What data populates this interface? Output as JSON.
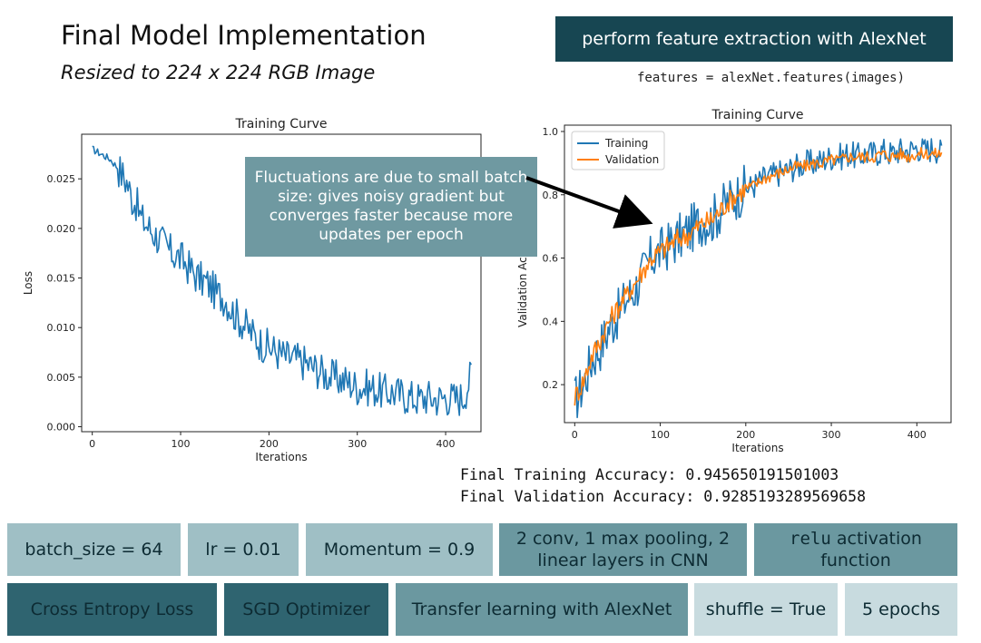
{
  "header": {
    "title": "Final Model Implementation",
    "subtitle": "Resized to 224 x 224 RGB Image",
    "feature_box": "perform feature extraction with AlexNet",
    "feature_code": "features = alexNet.features(images)"
  },
  "callout": "Fluctuations are due to small batch size: gives noisy gradient but converges faster because more updates per epoch",
  "accuracy": {
    "training": "Final Training Accuracy: 0.945650191501003",
    "validation": "Final Validation Accuracy: 0.9285193289569658"
  },
  "chips_row1": [
    {
      "label": "batch_size = 64"
    },
    {
      "label": "lr = 0.01"
    },
    {
      "label": "Momentum = 0.9"
    },
    {
      "label": "2 conv, 1 max pooling, 2 linear layers in CNN"
    },
    {
      "code": "relu",
      "label": " activation function"
    }
  ],
  "chips_row2": [
    {
      "label": "Cross Entropy Loss"
    },
    {
      "label": "SGD Optimizer"
    },
    {
      "label": "Transfer learning with AlexNet"
    },
    {
      "label": "shuffle = True"
    },
    {
      "label": "5 epochs"
    }
  ],
  "colors": {
    "training": "#1f77b4",
    "validation": "#ff7f0e",
    "dark_box": "#174652",
    "callout": "#6f99a1"
  },
  "chart_data": [
    {
      "type": "line",
      "title": "Training Curve",
      "xlabel": "Iterations",
      "ylabel": "Loss",
      "xlim": [
        -12,
        440
      ],
      "ylim": [
        -0.0005,
        0.0295
      ],
      "xticks": [
        0,
        100,
        200,
        300,
        400
      ],
      "yticks": [
        0.0,
        0.005,
        0.01,
        0.015,
        0.02,
        0.025
      ],
      "ytick_labels": [
        "0.000",
        "0.005",
        "0.010",
        "0.015",
        "0.020",
        "0.025"
      ],
      "grid": false,
      "series": [
        {
          "x": [
            0,
            10,
            20,
            30,
            40,
            45,
            50,
            55,
            60,
            70,
            80,
            90,
            100,
            110,
            120,
            130,
            140,
            150,
            160,
            170,
            180,
            190,
            200,
            210,
            220,
            230,
            240,
            250,
            260,
            270,
            280,
            290,
            300,
            310,
            320,
            330,
            340,
            350,
            360,
            370,
            380,
            390,
            400,
            410,
            420,
            430
          ],
          "y": [
            0.028,
            0.0275,
            0.027,
            0.026,
            0.0245,
            0.023,
            0.0225,
            0.021,
            0.0205,
            0.0195,
            0.0185,
            0.0175,
            0.017,
            0.016,
            0.015,
            0.0145,
            0.0135,
            0.013,
            0.0115,
            0.0105,
            0.0095,
            0.0085,
            0.008,
            0.0075,
            0.007,
            0.0068,
            0.0065,
            0.006,
            0.0055,
            0.005,
            0.0048,
            0.0045,
            0.004,
            0.004,
            0.0038,
            0.0035,
            0.0035,
            0.0032,
            0.003,
            0.0028,
            0.003,
            0.0028,
            0.003,
            0.0028,
            0.003,
            0.0055
          ]
        }
      ]
    },
    {
      "type": "line",
      "title": "Training Curve",
      "xlabel": "Iterations",
      "ylabel": "Validation Accuracy",
      "xlim": [
        -12,
        440
      ],
      "ylim": [
        0.08,
        1.02
      ],
      "xticks": [
        0,
        100,
        200,
        300,
        400
      ],
      "yticks": [
        0.2,
        0.4,
        0.6,
        0.8,
        1.0
      ],
      "legend": "top-left",
      "grid": false,
      "series": [
        {
          "name": "Training",
          "x": [
            0,
            10,
            20,
            30,
            40,
            50,
            60,
            70,
            80,
            90,
            100,
            110,
            120,
            130,
            140,
            150,
            160,
            170,
            180,
            190,
            200,
            210,
            220,
            230,
            240,
            250,
            260,
            270,
            280,
            290,
            300,
            310,
            320,
            330,
            340,
            350,
            360,
            370,
            380,
            390,
            400,
            410,
            420,
            430
          ],
          "y": [
            0.15,
            0.2,
            0.28,
            0.32,
            0.38,
            0.42,
            0.47,
            0.5,
            0.55,
            0.6,
            0.62,
            0.64,
            0.66,
            0.68,
            0.7,
            0.72,
            0.72,
            0.75,
            0.78,
            0.8,
            0.82,
            0.83,
            0.85,
            0.86,
            0.87,
            0.88,
            0.89,
            0.9,
            0.9,
            0.91,
            0.92,
            0.92,
            0.93,
            0.92,
            0.93,
            0.93,
            0.94,
            0.93,
            0.94,
            0.94,
            0.95,
            0.94,
            0.95,
            0.93
          ]
        },
        {
          "name": "Validation",
          "x": [
            0,
            10,
            20,
            30,
            40,
            50,
            60,
            70,
            80,
            90,
            100,
            110,
            120,
            130,
            140,
            150,
            160,
            170,
            180,
            190,
            200,
            210,
            220,
            230,
            240,
            250,
            260,
            270,
            280,
            290,
            300,
            310,
            320,
            330,
            340,
            350,
            360,
            370,
            380,
            390,
            400,
            410,
            420,
            430
          ],
          "y": [
            0.16,
            0.21,
            0.29,
            0.34,
            0.4,
            0.44,
            0.48,
            0.52,
            0.56,
            0.6,
            0.62,
            0.64,
            0.66,
            0.67,
            0.69,
            0.71,
            0.72,
            0.75,
            0.78,
            0.8,
            0.82,
            0.83,
            0.85,
            0.86,
            0.87,
            0.88,
            0.89,
            0.89,
            0.9,
            0.9,
            0.91,
            0.91,
            0.92,
            0.92,
            0.92,
            0.92,
            0.93,
            0.92,
            0.93,
            0.92,
            0.93,
            0.93,
            0.93,
            0.93
          ]
        }
      ]
    }
  ]
}
